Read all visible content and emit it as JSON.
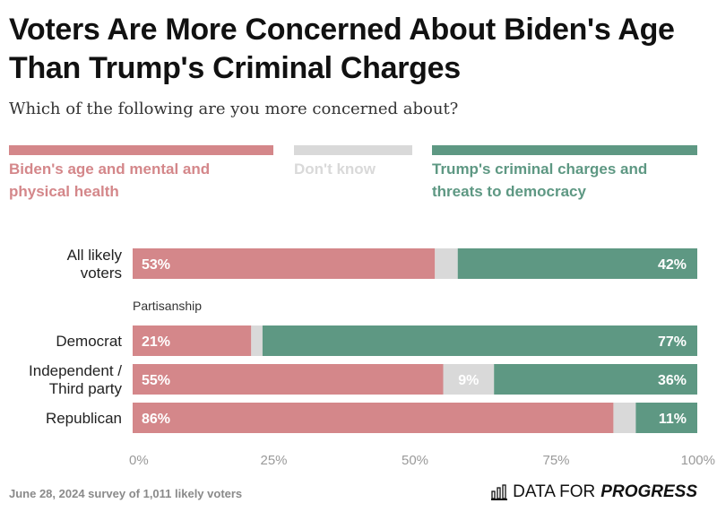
{
  "header": {
    "title": "Voters Are More Concerned About Biden's Age Than Trump's Criminal Charges",
    "subtitle": "Which of the following are you more concerned about?"
  },
  "legend": [
    {
      "label": "Biden's age and mental and physical health",
      "color": "#d4878a"
    },
    {
      "label": "Don't know",
      "color": "#d9d9d9"
    },
    {
      "label": "Trump's criminal charges and threats to democracy",
      "color": "#5e9883"
    }
  ],
  "chart_data": {
    "type": "bar",
    "orientation": "horizontal",
    "stacked": true,
    "categories": [
      "All likely voters",
      "Democrat",
      "Independent / Third party",
      "Republican"
    ],
    "group_label": "Partisanship",
    "series": [
      {
        "name": "Biden's age and mental and physical health",
        "values": [
          53,
          21,
          55,
          86
        ],
        "color": "#d4878a"
      },
      {
        "name": "Don't know",
        "values": [
          4,
          2,
          9,
          4
        ],
        "color": "#d9d9d9"
      },
      {
        "name": "Trump's criminal charges and threats to democracy",
        "values": [
          42,
          77,
          36,
          11
        ],
        "color": "#5e9883"
      }
    ],
    "data_labels": [
      [
        "53%",
        "",
        "42%"
      ],
      [
        "21%",
        "",
        "77%"
      ],
      [
        "55%",
        "9%",
        "36%"
      ],
      [
        "86%",
        "",
        "11%"
      ]
    ],
    "xlim": [
      0,
      100
    ],
    "xticks": [
      "0%",
      "25%",
      "50%",
      "75%",
      "100%"
    ]
  },
  "footer": {
    "note": "June 28, 2024 survey of 1,011 likely voters",
    "brand_word1": "DATA FOR",
    "brand_word2": "PROGRESS"
  }
}
